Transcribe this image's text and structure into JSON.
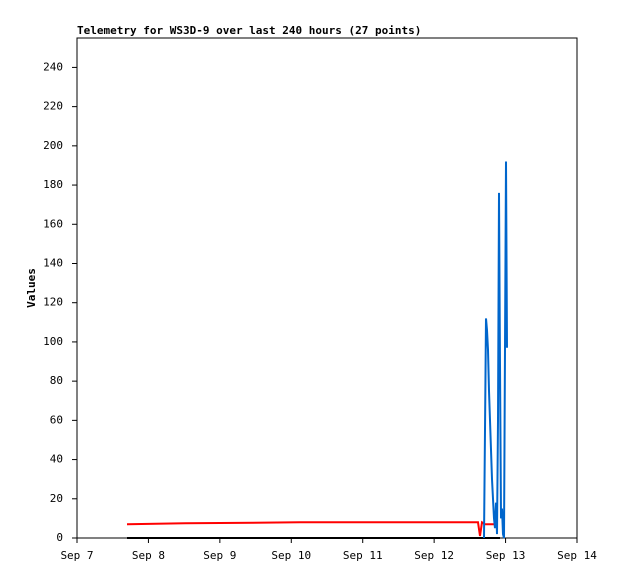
{
  "chart_data": {
    "type": "line",
    "title": "Telemetry for WS3D-9 over last 240 hours (27 points)",
    "y_label": "Values",
    "xlim": [
      7,
      14
    ],
    "xticks": [
      {
        "value": 7,
        "label": "Sep 7"
      },
      {
        "value": 8,
        "label": "Sep 8"
      },
      {
        "value": 9,
        "label": "Sep 9"
      },
      {
        "value": 10,
        "label": "Sep 10"
      },
      {
        "value": 11,
        "label": "Sep 11"
      },
      {
        "value": 12,
        "label": "Sep 12"
      },
      {
        "value": 13,
        "label": "Sep 13"
      },
      {
        "value": 14,
        "label": "Sep 14"
      }
    ],
    "ylim": [
      0,
      255
    ],
    "yticks": [
      0,
      20,
      40,
      60,
      80,
      100,
      120,
      140,
      160,
      180,
      200,
      220,
      240
    ],
    "grid": false,
    "series": [
      {
        "color": "#000000",
        "x": [
          7.7,
          12.922
        ],
        "values": [
          0,
          0
        ]
      },
      {
        "color": "#ff0000",
        "x": [
          7.7,
          8.512,
          10.122,
          12.614,
          12.642,
          12.67,
          12.712,
          12.852
        ],
        "values": [
          7,
          7.5,
          8,
          8,
          1,
          8,
          7,
          7
        ]
      },
      {
        "color": "#0066cc",
        "x": [
          12.698,
          12.712,
          12.726,
          12.74,
          12.754,
          12.768,
          12.782,
          12.796,
          12.81,
          12.824,
          12.838,
          12.852,
          12.866,
          12.88,
          12.894,
          12.908,
          12.922,
          12.936,
          12.95,
          12.964,
          12.978,
          12.992,
          13.006,
          13.02
        ],
        "values": [
          0,
          55,
          112,
          106,
          96,
          75,
          60,
          45,
          30,
          20,
          10,
          5,
          18,
          2,
          60,
          176,
          88,
          10,
          15,
          2,
          0,
          97,
          192,
          97
        ]
      }
    ]
  }
}
